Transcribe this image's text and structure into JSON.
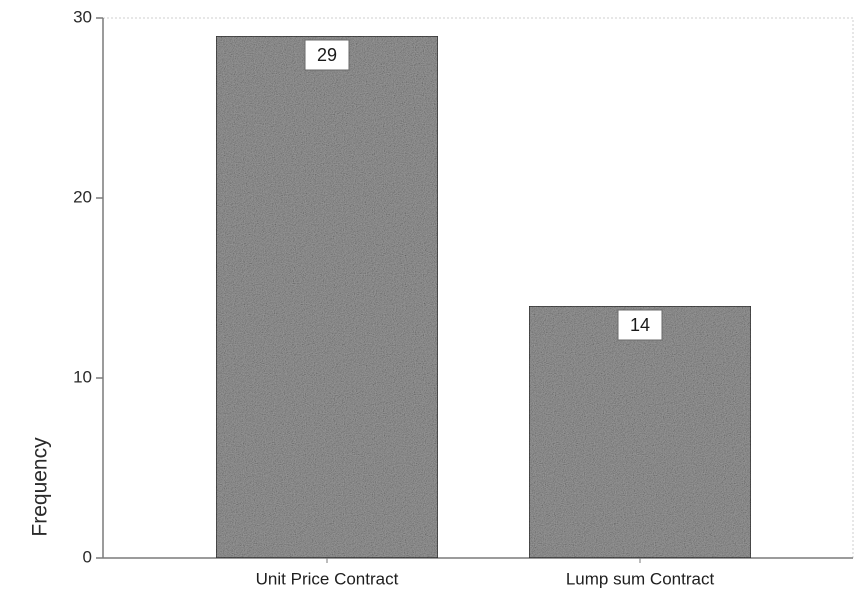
{
  "chart_data": {
    "type": "bar",
    "categories": [
      "Unit Price Contract",
      "Lump sum Contract"
    ],
    "values": [
      29,
      14
    ],
    "data_labels": [
      "29",
      "14"
    ],
    "title": "",
    "xlabel": "",
    "ylabel": "Frequency",
    "ylim": [
      0,
      30
    ],
    "yticks": [
      0,
      10,
      20,
      30
    ],
    "ytick_labels": [
      "0",
      "10",
      "20",
      "30"
    ],
    "grid": false,
    "legend": "none",
    "colors": {
      "bar_fill": "#9a9a9a",
      "bar_stroke": "#3a3a3a",
      "axis": "#7a7a7a",
      "plot_border": "#bdbdbd",
      "label_box": "#ffffff"
    }
  }
}
